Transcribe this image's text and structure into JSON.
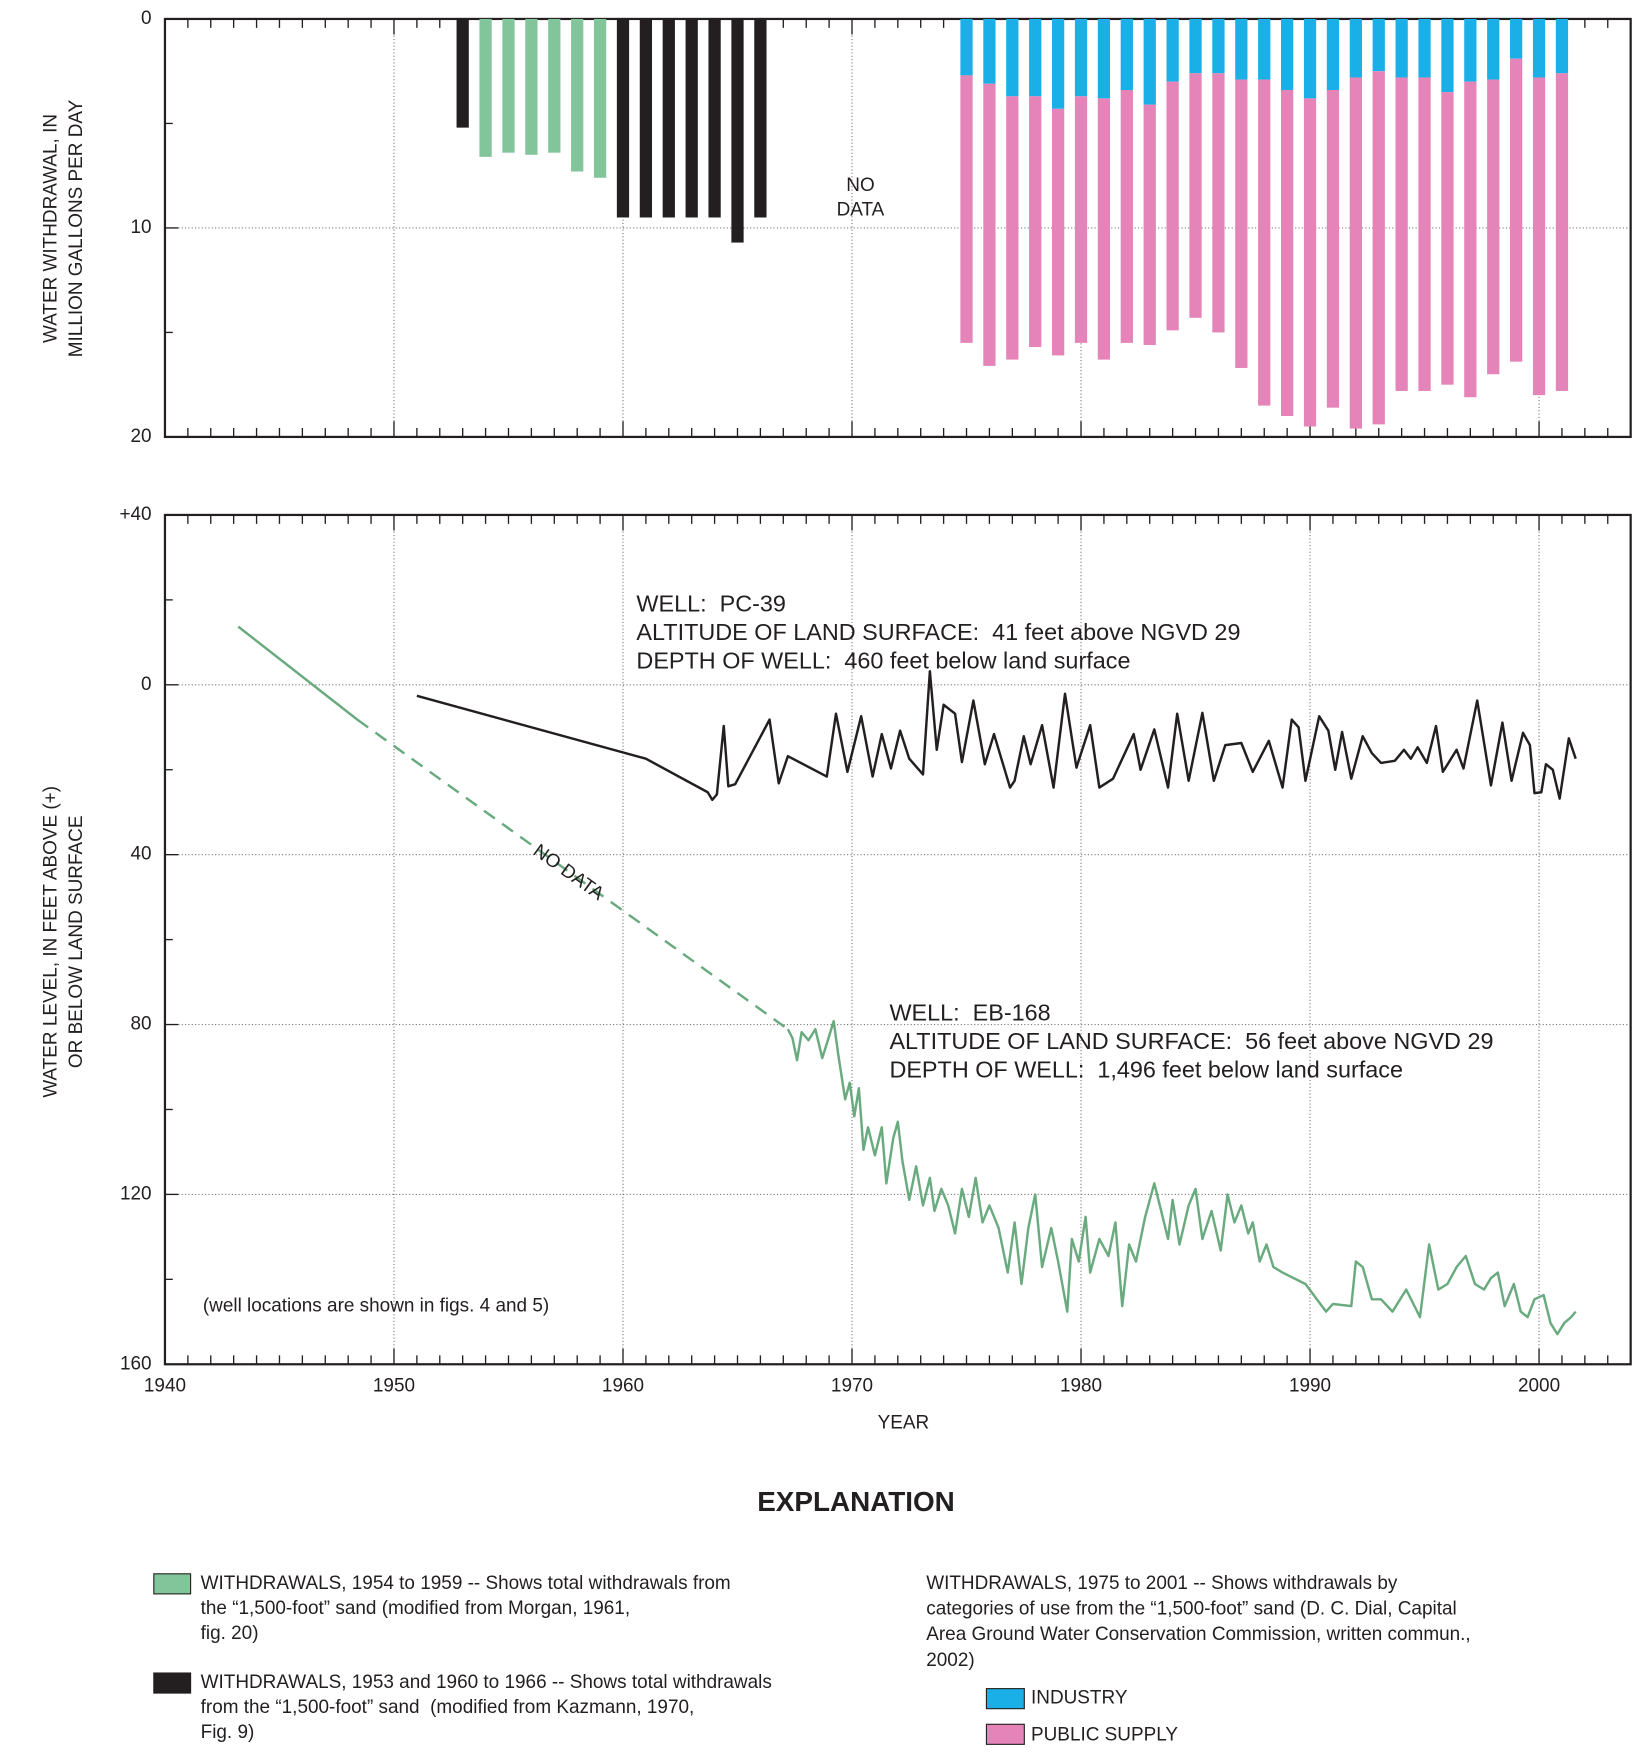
{
  "chart_data": [
    {
      "type": "bar",
      "ylabel": [
        "WATER WITHDRAWAL, IN",
        "MILLION GALLONS PER DAY"
      ],
      "xlim": [
        1940,
        2004
      ],
      "xticks": [
        1940,
        1950,
        1960,
        1970,
        1980,
        1990,
        2000
      ],
      "xtick_labels": false,
      "ylim": [
        0,
        20
      ],
      "yticks": [
        0,
        10,
        20
      ],
      "y_inverted": true,
      "grid": true,
      "annotations": [
        {
          "lines": [
            "NO",
            "DATA"
          ]
        }
      ],
      "legend_title": "EXPLANATION",
      "legend_note": [
        "WITHDRAWALS, 1975 to 2001 -- Shows withdrawals by",
        "categories of use from the “1,500-foot” sand (D. C. Dial, Capital",
        "Area Ground Water Conservation Commission, written commun.,",
        "2002)"
      ],
      "series": [
        {
          "name": [
            "WITHDRAWALS, 1954 to 1959 -- Shows total withdrawals from",
            "the “1,500-foot” sand (modified from Morgan, 1961,",
            "fig. 20)"
          ],
          "color": "#83c59a",
          "x": [
            1954,
            1955,
            1956,
            1957,
            1958,
            1959
          ],
          "values": [
            6.6,
            6.4,
            6.5,
            6.4,
            7.3,
            7.6
          ]
        },
        {
          "name": [
            "WITHDRAWALS, 1953 and 1960 to 1966 -- Shows total withdrawals",
            "from the “1,500-foot” sand  (modified from Kazmann, 1970,",
            "Fig. 9)"
          ],
          "color": "#231f20",
          "x": [
            1953,
            1960,
            1961,
            1962,
            1963,
            1964,
            1965,
            1966
          ],
          "values": [
            5.2,
            9.5,
            9.5,
            9.5,
            9.5,
            9.5,
            10.7,
            9.5
          ]
        },
        {
          "name": "INDUSTRY",
          "color": "#1aafe6",
          "stacked": true,
          "x": [
            1975,
            1976,
            1977,
            1978,
            1979,
            1980,
            1981,
            1982,
            1983,
            1984,
            1985,
            1986,
            1987,
            1988,
            1989,
            1990,
            1991,
            1992,
            1993,
            1994,
            1995,
            1996,
            1997,
            1998,
            1999,
            2000,
            2001
          ],
          "values": [
            2.7,
            3.1,
            3.7,
            3.7,
            4.3,
            3.7,
            3.8,
            3.4,
            4.1,
            3.0,
            2.6,
            2.6,
            2.9,
            2.9,
            3.4,
            3.8,
            3.4,
            2.8,
            2.5,
            2.8,
            2.8,
            3.5,
            3.0,
            2.9,
            1.9,
            2.8,
            2.6
          ]
        },
        {
          "name": "PUBLIC SUPPLY",
          "color": "#e484b8",
          "stacked": true,
          "x": [
            1975,
            1976,
            1977,
            1978,
            1979,
            1980,
            1981,
            1982,
            1983,
            1984,
            1985,
            1986,
            1987,
            1988,
            1989,
            1990,
            1991,
            1992,
            1993,
            1994,
            1995,
            1996,
            1997,
            1998,
            1999,
            2000,
            2001
          ],
          "values": [
            12.8,
            13.5,
            12.6,
            12.0,
            11.8,
            11.8,
            12.5,
            12.1,
            11.5,
            11.9,
            11.7,
            12.4,
            13.8,
            15.6,
            15.6,
            15.7,
            15.2,
            16.8,
            16.9,
            15.0,
            15.0,
            14.0,
            15.1,
            14.1,
            14.5,
            15.2,
            15.2
          ]
        }
      ]
    },
    {
      "type": "line",
      "xlabel": "YEAR",
      "ylabel": [
        "WATER LEVEL, IN FEET ABOVE (+)",
        "OR BELOW LAND SURFACE"
      ],
      "xlim": [
        1940,
        2004
      ],
      "xticks": [
        1940,
        1950,
        1960,
        1970,
        1980,
        1990,
        2000
      ],
      "xtick_labels": true,
      "ylim": [
        -40,
        160
      ],
      "yticks": [
        {
          "value": -40,
          "label": "+40"
        },
        0,
        40,
        80,
        120,
        160
      ],
      "y_inverted": true,
      "grid": true,
      "annotations": [
        {
          "lines": [
            "(well locations are shown in figs. 4 and 5)"
          ]
        }
      ],
      "series": [
        {
          "color": "#231f20",
          "label_lines": [
            "WELL:  PC-39",
            "ALTITUDE OF LAND SURFACE:  41 feet above NGVD 29",
            "DEPTH OF WELL:  460 feet below land surface"
          ],
          "x": [
            1951.0,
            1961.0,
            1963.7,
            1963.9,
            1964.1,
            1964.4,
            1964.6,
            1964.9,
            1966.4,
            1966.8,
            1967.2,
            1968.9,
            1969.3,
            1969.8,
            1970.4,
            1970.9,
            1971.3,
            1971.7,
            1972.1,
            1972.5,
            1973.1,
            1973.4,
            1973.7,
            1974.0,
            1974.5,
            1974.8,
            1975.3,
            1975.8,
            1976.2,
            1976.9,
            1977.1,
            1977.5,
            1977.8,
            1978.3,
            1978.8,
            1979.3,
            1979.6,
            1979.8,
            1980.4,
            1980.8,
            1981.4,
            1982.3,
            1982.6,
            1983.2,
            1983.8,
            1984.2,
            1984.7,
            1985.3,
            1985.8,
            1986.3,
            1987.0,
            1987.5,
            1988.2,
            1988.8,
            1989.2,
            1989.5,
            1989.8,
            1990.4,
            1990.8,
            1991.1,
            1991.4,
            1991.8,
            1992.3,
            1992.7,
            1993.1,
            1993.7,
            1994.1,
            1994.4,
            1994.7,
            1995.1,
            1995.5,
            1995.8,
            1996.4,
            1996.7,
            1997.3,
            1997.9,
            1998.4,
            1998.8,
            1999.3,
            1999.6,
            1999.8,
            2000.1,
            2000.3,
            2000.6,
            2000.9,
            2001.3,
            2001.6
          ],
          "values": [
            2.6,
            17.4,
            25.3,
            27.1,
            25.8,
            9.7,
            23.9,
            23.4,
            8.2,
            23.2,
            16.8,
            21.6,
            6.8,
            20.5,
            7.4,
            21.6,
            11.6,
            19.7,
            10.8,
            17.4,
            21.1,
            -3.2,
            15.3,
            4.7,
            6.8,
            18.2,
            3.7,
            18.7,
            11.6,
            24.2,
            22.6,
            12.1,
            18.7,
            9.5,
            24.2,
            2.1,
            12.6,
            19.5,
            9.5,
            24.2,
            22.1,
            11.6,
            20.0,
            10.5,
            24.2,
            6.8,
            22.6,
            6.6,
            22.6,
            14.2,
            13.7,
            20.5,
            13.2,
            24.2,
            8.2,
            10.0,
            22.6,
            7.4,
            10.8,
            20.0,
            11.1,
            22.1,
            12.1,
            16.1,
            18.4,
            17.9,
            15.3,
            17.4,
            14.7,
            18.4,
            9.7,
            20.5,
            15.3,
            19.7,
            3.7,
            23.7,
            8.9,
            22.6,
            11.3,
            14.2,
            25.5,
            25.3,
            18.7,
            20.0,
            26.8,
            12.6,
            17.4
          ]
        },
        {
          "color": "#6aaa7f",
          "label_lines": [
            "WELL:  EB-168",
            "ALTITUDE OF LAND SURFACE:  56 feet above NGVD 29",
            "DEPTH OF WELL:  1,496 feet below land surface"
          ],
          "x": [
            1943.2,
            1948.4,
            null,
            1967.2,
            1967.4,
            1967.6,
            1967.8,
            1968.1,
            1968.4,
            1968.7,
            1968.9,
            1969.2,
            1969.4,
            1969.7,
            1969.9,
            1970.1,
            1970.3,
            1970.5,
            1970.7,
            1971.0,
            1971.3,
            1971.5,
            1971.8,
            1972.0,
            1972.2,
            1972.5,
            1972.8,
            1973.1,
            1973.4,
            1973.6,
            1973.9,
            1974.2,
            1974.5,
            1974.8,
            1975.1,
            1975.4,
            1975.7,
            1976.0,
            1976.4,
            1976.8,
            1977.1,
            1977.4,
            1977.7,
            1978.0,
            1978.3,
            1978.7,
            1979.0,
            1979.4,
            1979.6,
            1979.9,
            1980.2,
            1980.4,
            1980.8,
            1981.2,
            1981.5,
            1981.8,
            1982.1,
            1982.4,
            1982.8,
            1983.2,
            1983.5,
            1983.8,
            1984.0,
            1984.3,
            1984.7,
            1985.0,
            1985.3,
            1985.7,
            1986.1,
            1986.4,
            1986.7,
            1987.0,
            1987.3,
            1987.5,
            1987.8,
            1988.1,
            1988.4,
            1988.8,
            1989.8,
            1990.7,
            1991.0,
            1991.8,
            1992.0,
            1992.3,
            1992.7,
            1993.1,
            1993.6,
            1994.2,
            1994.8,
            1995.2,
            1995.6,
            1996.0,
            1996.4,
            1996.8,
            1997.2,
            1997.6,
            1997.9,
            1998.2,
            1998.5,
            1998.9,
            1999.2,
            1999.5,
            1999.8,
            2000.2,
            2000.5,
            2000.8,
            2001.1,
            2001.4,
            2001.6
          ],
          "values": [
            -13.7,
            8.2,
            null,
            81.1,
            83.2,
            88.4,
            81.8,
            83.7,
            81.1,
            87.9,
            84.5,
            79.2,
            87.1,
            97.6,
            93.7,
            101.6,
            95.0,
            109.5,
            104.2,
            110.8,
            104.2,
            117.4,
            106.8,
            102.9,
            112.1,
            121.3,
            113.4,
            122.6,
            116.1,
            123.9,
            118.7,
            122.6,
            129.2,
            118.7,
            125.3,
            116.1,
            126.6,
            122.6,
            127.9,
            138.4,
            126.6,
            141.1,
            127.9,
            120.0,
            137.1,
            127.9,
            135.8,
            147.6,
            130.5,
            135.8,
            125.3,
            138.4,
            130.5,
            134.5,
            126.6,
            146.3,
            131.8,
            135.8,
            125.3,
            117.4,
            123.9,
            130.5,
            121.3,
            131.8,
            122.6,
            118.7,
            130.5,
            123.9,
            133.2,
            120.0,
            126.6,
            122.6,
            129.2,
            126.6,
            135.8,
            131.8,
            137.1,
            138.4,
            141.1,
            147.6,
            145.8,
            146.3,
            135.8,
            137.1,
            144.7,
            144.7,
            147.6,
            142.4,
            148.9,
            131.8,
            142.4,
            141.1,
            137.1,
            134.5,
            141.1,
            142.4,
            139.7,
            138.4,
            146.3,
            141.1,
            147.6,
            148.9,
            144.7,
            143.7,
            150.3,
            152.9,
            150.3,
            148.9,
            147.6
          ]
        },
        {
          "color": "#6aaa7f",
          "dashed": true,
          "label": "NO DATA",
          "x": [
            1948.4,
            1967.2
          ],
          "values": [
            8.2,
            81.1
          ]
        }
      ]
    }
  ]
}
